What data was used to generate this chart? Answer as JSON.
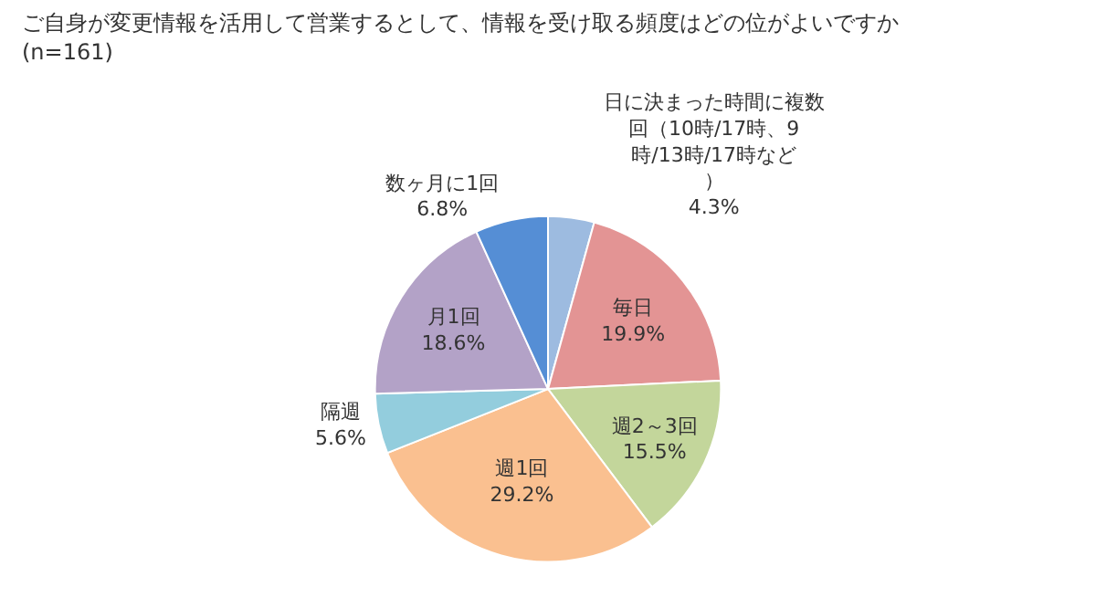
{
  "chart_data": {
    "type": "pie",
    "title": "ご自身が変更情報を活用して営業するとして、情報を受け取る頻度はどの位がよいですか",
    "subtitle": "(n=161)",
    "categories": [
      "日に決まった時間に複数回（10時/17時、9時/13時/17時など）",
      "毎日",
      "週2～3回",
      "週1回",
      "隔週",
      "月1回",
      "数ヶ月に1回"
    ],
    "values": [
      4.3,
      19.9,
      15.5,
      29.2,
      5.6,
      18.6,
      6.8
    ],
    "value_labels": [
      "4.3%",
      "19.9%",
      "15.5%",
      "29.2%",
      "5.6%",
      "18.6%",
      "6.8%"
    ],
    "colors": [
      "#9dbbe0",
      "#e39494",
      "#c3d69b",
      "#fac090",
      "#93cddd",
      "#b3a2c7",
      "#558ed5"
    ],
    "legend": false
  }
}
